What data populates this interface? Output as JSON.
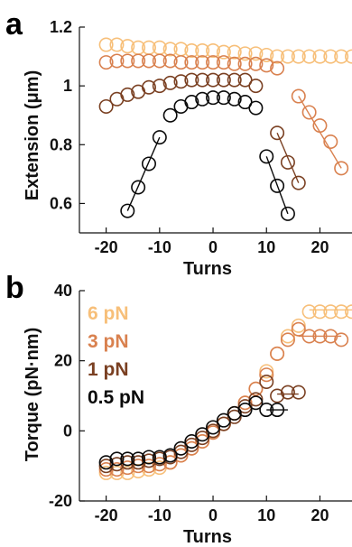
{
  "colors": {
    "6pN": "#f7bf79",
    "3pN": "#d9814f",
    "1pN": "#7a4022",
    "0.5pN": "#0a0a0a",
    "axis": "#111111"
  },
  "panel_a": {
    "letter": "a"
  },
  "panel_b": {
    "letter": "b"
  },
  "chart_data": [
    {
      "type": "scatter",
      "xlabel": "Turns",
      "ylabel": "Extension (μm)",
      "xlim": [
        -25,
        26
      ],
      "ylim": [
        0.5,
        1.2
      ],
      "xticks": [
        "-20",
        "-10",
        "0",
        "10",
        "20"
      ],
      "xtick_values": [
        -20,
        -10,
        0,
        10,
        20
      ],
      "yticks": [
        "0.6",
        "0.8",
        "1",
        "1.2"
      ],
      "ytick_values": [
        0.6,
        0.8,
        1.0,
        1.2
      ],
      "series": [
        {
          "key": "6pN",
          "x": [
            -20,
            -18,
            -16,
            -14,
            -12,
            -10,
            -8,
            -6,
            -4,
            -2,
            0,
            2,
            4,
            6,
            8,
            10,
            12,
            14,
            16,
            18,
            20,
            22,
            24,
            26
          ],
          "y": [
            1.14,
            1.14,
            1.135,
            1.13,
            1.13,
            1.13,
            1.125,
            1.125,
            1.12,
            1.12,
            1.12,
            1.115,
            1.115,
            1.11,
            1.11,
            1.105,
            1.1,
            1.1,
            1.1,
            1.1,
            1.1,
            1.1,
            1.1,
            1.1
          ],
          "fit_segments": []
        },
        {
          "key": "3pN",
          "x": [
            -20,
            -18,
            -16,
            -14,
            -12,
            -10,
            -8,
            -6,
            -4,
            -2,
            0,
            2,
            4,
            6,
            8,
            10,
            12,
            16,
            18,
            20,
            22,
            24
          ],
          "y": [
            1.08,
            1.085,
            1.085,
            1.085,
            1.085,
            1.085,
            1.085,
            1.08,
            1.08,
            1.08,
            1.08,
            1.08,
            1.075,
            1.075,
            1.075,
            1.07,
            1.06,
            0.965,
            0.91,
            0.865,
            0.81,
            0.72
          ],
          "fit_segments": [
            [
              [
                16,
                0.965
              ],
              [
                24,
                0.72
              ]
            ]
          ]
        },
        {
          "key": "1pN",
          "x": [
            -20,
            -18,
            -16,
            -14,
            -12,
            -10,
            -8,
            -6,
            -4,
            -2,
            0,
            2,
            4,
            6,
            8,
            12,
            14,
            16
          ],
          "y": [
            0.93,
            0.955,
            0.97,
            0.98,
            0.995,
            1.0,
            1.01,
            1.015,
            1.02,
            1.02,
            1.02,
            1.02,
            1.02,
            1.02,
            1.0,
            0.84,
            0.74,
            0.67
          ],
          "fit_segments": [
            [
              [
                12,
                0.84
              ],
              [
                16,
                0.67
              ]
            ]
          ]
        },
        {
          "key": "0.5pN",
          "x": [
            -16,
            -14,
            -12,
            -10,
            -8,
            -6,
            -4,
            -2,
            0,
            2,
            4,
            6,
            8,
            10,
            12,
            14
          ],
          "y": [
            0.575,
            0.655,
            0.735,
            0.825,
            0.9,
            0.93,
            0.945,
            0.955,
            0.96,
            0.96,
            0.955,
            0.945,
            0.925,
            0.76,
            0.66,
            0.565
          ],
          "fit_segments": [
            [
              [
                -16,
                0.575
              ],
              [
                -10,
                0.825
              ]
            ],
            [
              [
                10,
                0.76
              ],
              [
                14,
                0.565
              ]
            ]
          ]
        }
      ]
    },
    {
      "type": "scatter",
      "xlabel": "Turns",
      "ylabel": "Torque (pN·nm)",
      "xlim": [
        -25,
        26
      ],
      "ylim": [
        -20,
        40
      ],
      "xticks": [
        "-20",
        "-10",
        "0",
        "10",
        "20"
      ],
      "xtick_values": [
        -20,
        -10,
        0,
        10,
        20
      ],
      "yticks": [
        "-20",
        "0",
        "20",
        "40"
      ],
      "ytick_values": [
        -20,
        0,
        20,
        40
      ],
      "legend": [
        {
          "key": "6pN",
          "label": "6 pN"
        },
        {
          "key": "3pN",
          "label": "3 pN"
        },
        {
          "key": "1pN",
          "label": "1 pN"
        },
        {
          "key": "0.5pN",
          "label": "0.5 pN"
        }
      ],
      "legend_position": "top-left",
      "series": [
        {
          "key": "6pN",
          "x": [
            -20,
            -18,
            -16,
            -14,
            -12,
            -10,
            -8,
            -6,
            -4,
            -2,
            0,
            2,
            4,
            6,
            8,
            10,
            12,
            14,
            16,
            18,
            20,
            22,
            24,
            26
          ],
          "y": [
            -12,
            -12,
            -12,
            -11.5,
            -11,
            -10.5,
            -9,
            -7,
            -5,
            -3,
            0,
            2,
            5,
            8,
            12,
            17,
            22,
            27,
            30,
            34,
            34,
            34,
            34,
            34
          ],
          "fit_segments": [
            [
              [
                18,
                34.5
              ],
              [
                26,
                34.5
              ]
            ]
          ]
        },
        {
          "key": "3pN",
          "x": [
            -20,
            -18,
            -16,
            -14,
            -12,
            -10,
            -8,
            -6,
            -4,
            -2,
            0,
            2,
            4,
            6,
            8,
            10,
            12,
            14,
            16,
            18,
            20,
            22,
            24
          ],
          "y": [
            -11,
            -11,
            -10.5,
            -10,
            -10,
            -9.5,
            -9,
            -7,
            -5,
            -3,
            -0.5,
            2,
            5,
            8,
            12,
            16,
            22,
            26,
            29,
            27,
            27,
            27,
            26
          ],
          "fit_segments": [
            [
              [
                16,
                27
              ],
              [
                24,
                27
              ]
            ]
          ]
        },
        {
          "key": "1pN",
          "x": [
            -20,
            -18,
            -16,
            -14,
            -12,
            -10,
            -8,
            -6,
            -4,
            -2,
            0,
            2,
            4,
            6,
            8,
            10,
            12,
            14,
            16
          ],
          "y": [
            -10,
            -9.5,
            -9,
            -9,
            -8.5,
            -8,
            -7.5,
            -6,
            -4,
            -2,
            0,
            2,
            4,
            7,
            9,
            14,
            10,
            11,
            11
          ],
          "fit_segments": [
            [
              [
                12,
                10.5
              ],
              [
                16,
                10.5
              ]
            ]
          ]
        },
        {
          "key": "0.5pN",
          "x": [
            -20,
            -18,
            -16,
            -14,
            -12,
            -10,
            -8,
            -6,
            -4,
            -2,
            0,
            2,
            4,
            6,
            8,
            10,
            12
          ],
          "y": [
            -9,
            -8,
            -8,
            -8,
            -7.5,
            -7.5,
            -7,
            -5,
            -3,
            -1,
            1,
            3,
            5,
            6,
            8,
            6,
            6
          ],
          "fit_segments": [
            [
              [
                10,
                6
              ],
              [
                14,
                6
              ]
            ]
          ]
        }
      ]
    }
  ]
}
